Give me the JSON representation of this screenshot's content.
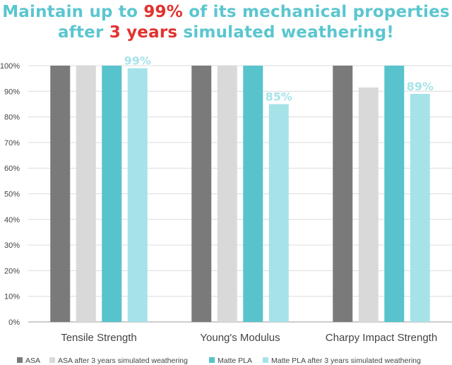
{
  "headline": {
    "line1_a": "Maintain up to ",
    "line1_b": "99%",
    "line1_c": " of its mechanical properties",
    "line2_a": "after ",
    "line2_b": "3 years",
    "line2_c": " simulated weathering!"
  },
  "colors": {
    "headline_text": "#5bc6cf",
    "headline_highlight": "#e1322e",
    "axis_text": "#444444",
    "gridline": "#dcdcdc",
    "axis_line": "#9a9a9a"
  },
  "chart_data": {
    "type": "bar",
    "categories": [
      "Tensile Strength",
      "Young's Modulus",
      "Charpy Impact Strength"
    ],
    "series": [
      {
        "name": "ASA",
        "color": "#7a7a7a",
        "values": [
          100,
          100,
          100
        ]
      },
      {
        "name": "ASA after 3 years simulated weathering",
        "color": "#d9d9d9",
        "values": [
          100,
          100,
          91.5
        ]
      },
      {
        "name": "Matte PLA",
        "color": "#58c3cc",
        "values": [
          100,
          100,
          100
        ]
      },
      {
        "name": "Matte PLA after 3 years simulated weathering",
        "color": "#a6e3e9",
        "values": [
          99,
          85,
          89
        ]
      }
    ],
    "data_labels": [
      {
        "category": 0,
        "series": 3,
        "text": "99%"
      },
      {
        "category": 1,
        "series": 3,
        "text": "85%"
      },
      {
        "category": 2,
        "series": 3,
        "text": "89%"
      }
    ],
    "y_ticks": [
      "0%",
      "10%",
      "20%",
      "30%",
      "40%",
      "50%",
      "60%",
      "70%",
      "80%",
      "90%",
      "100%"
    ],
    "ylim": [
      0,
      100
    ],
    "grid": true,
    "legend_position": "bottom"
  }
}
